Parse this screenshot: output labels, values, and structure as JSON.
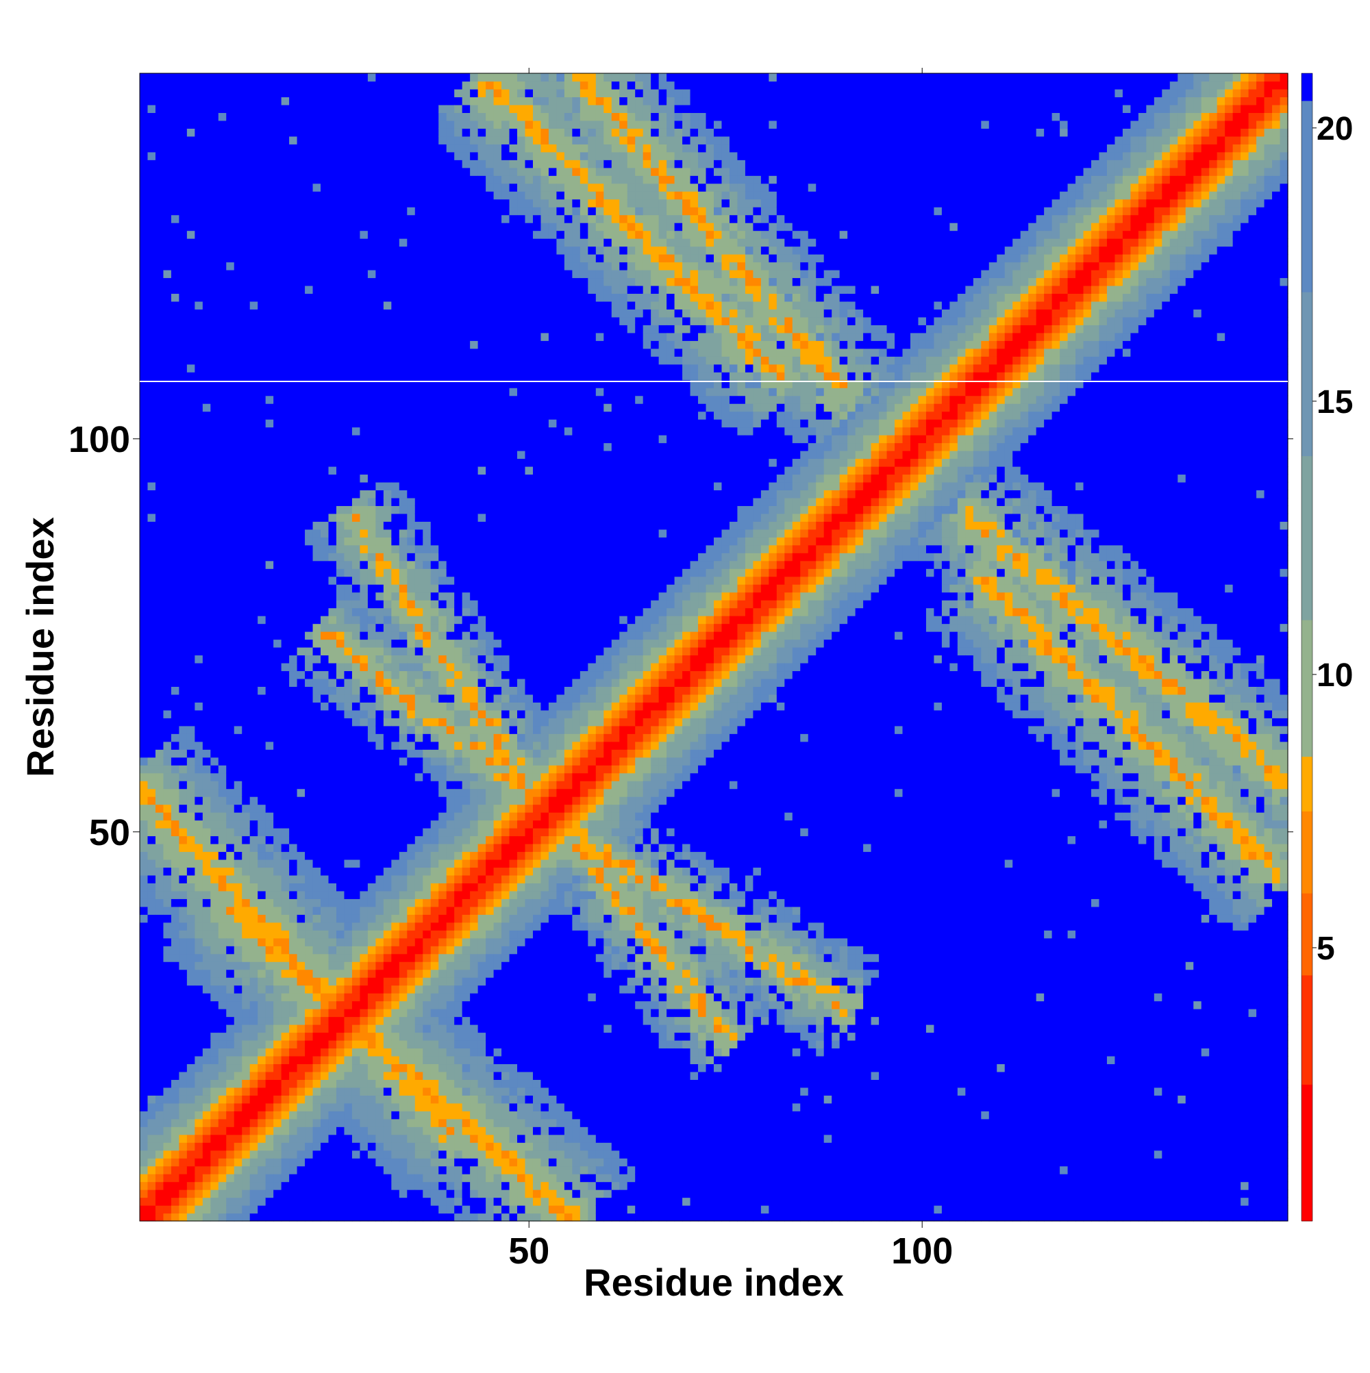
{
  "chart_data": {
    "type": "heatmap",
    "title": "",
    "xlabel": "Residue index",
    "ylabel": "Residue index",
    "n_residues": 146,
    "xlim": [
      1,
      146
    ],
    "ylim": [
      1,
      146
    ],
    "x_ticks": [
      50,
      100
    ],
    "y_ticks": [
      50,
      100
    ],
    "grid": false,
    "legend": "colorbar-right",
    "colorbar": {
      "ticks": [
        5,
        10,
        15,
        20
      ],
      "range": [
        0,
        21
      ],
      "levels": [
        {
          "max": 2.5,
          "color": "#ff0000"
        },
        {
          "max": 4.5,
          "color": "#ff3300"
        },
        {
          "max": 6.0,
          "color": "#ff6600"
        },
        {
          "max": 7.5,
          "color": "#ff8800"
        },
        {
          "max": 8.5,
          "color": "#ffaa00"
        },
        {
          "max": 11.0,
          "color": "#94b28d"
        },
        {
          "max": 14.0,
          "color": "#7fa3a0"
        },
        {
          "max": 17.0,
          "color": "#6f96b3"
        },
        {
          "max": 20.5,
          "color": "#5d89c2"
        },
        {
          "max": 99,
          "color": "#0000ff"
        }
      ]
    },
    "cell_values": "pairwise residue distance map; strong diagonal band (distance ~0-10) plus antiparallel off-diagonal contact bands",
    "off_diagonal_bands": [
      {
        "a_start": 1,
        "a_end": 40,
        "b_start": 55,
        "b_end": 12,
        "strength": 0.85
      },
      {
        "a_start": 45,
        "a_end": 82,
        "b_start": 145,
        "b_end": 108,
        "strength": 0.8
      },
      {
        "a_start": 55,
        "a_end": 90,
        "b_start": 50,
        "b_end": 28,
        "strength": 0.55
      },
      {
        "a_start": 24,
        "a_end": 50,
        "b_start": 75,
        "b_end": 55,
        "strength": 0.55
      },
      {
        "a_start": 106,
        "a_end": 148,
        "b_start": 90,
        "b_end": 55,
        "strength": 0.75
      }
    ],
    "colors": {
      "background": "#0000ff"
    }
  }
}
